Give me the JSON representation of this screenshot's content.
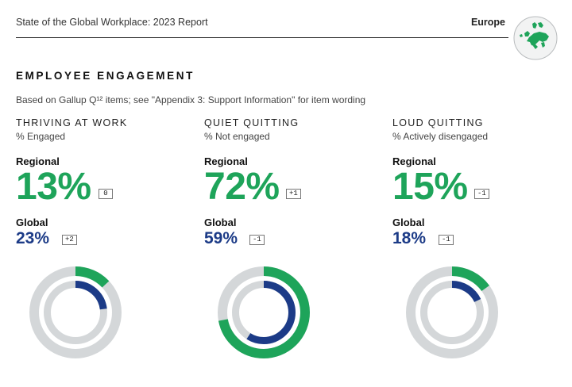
{
  "header": {
    "report_title": "State of the Global Workplace: 2023 Report",
    "region": "Europe",
    "map_icon": "europe-map-icon"
  },
  "section": {
    "title": "EMPLOYEE ENGAGEMENT",
    "note": "Based on Gallup Q¹² items; see \"Appendix 3: Support Information\" for item wording"
  },
  "labels": {
    "regional": "Regional",
    "global": "Global"
  },
  "colors": {
    "regional": "#1ea45a",
    "global": "#1c3b87",
    "track": "#d4d7d9"
  },
  "metrics": [
    {
      "title": "THRIVING AT WORK",
      "subtitle": "% Engaged",
      "regional": {
        "display": "13%",
        "value": 13,
        "change": "0"
      },
      "global": {
        "display": "23%",
        "value": 23,
        "change": "+2"
      }
    },
    {
      "title": "QUIET QUITTING",
      "subtitle": "% Not engaged",
      "regional": {
        "display": "72%",
        "value": 72,
        "change": "+1"
      },
      "global": {
        "display": "59%",
        "value": 59,
        "change": "-1"
      }
    },
    {
      "title": "LOUD QUITTING",
      "subtitle": "% Actively disengaged",
      "regional": {
        "display": "15%",
        "value": 15,
        "change": "-1"
      },
      "global": {
        "display": "18%",
        "value": 18,
        "change": "-1"
      }
    }
  ]
}
